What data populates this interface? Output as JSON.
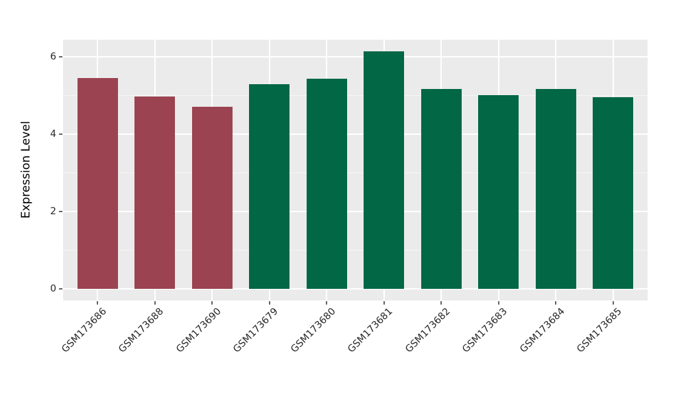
{
  "chart_data": {
    "type": "bar",
    "title": "",
    "xlabel": "",
    "ylabel": "Expression Level",
    "categories": [
      "GSM173686",
      "GSM173688",
      "GSM173690",
      "GSM173679",
      "GSM173680",
      "GSM173681",
      "GSM173682",
      "GSM173683",
      "GSM173684",
      "GSM173685"
    ],
    "values": [
      5.45,
      4.98,
      4.71,
      5.29,
      5.43,
      6.14,
      5.17,
      5.01,
      5.17,
      4.96
    ],
    "bar_colors": [
      "#9B4351",
      "#9B4351",
      "#9B4351",
      "#016745",
      "#016745",
      "#016745",
      "#016745",
      "#016745",
      "#016745",
      "#016745"
    ],
    "yticks": [
      0,
      2,
      4,
      6
    ],
    "ytick_labels": [
      "0",
      "2",
      "4",
      "6"
    ],
    "yticks_minor": [
      1,
      3,
      5
    ],
    "ylim": [
      -0.3,
      6.44
    ],
    "grid": "on",
    "legend_position": "none",
    "panel_background": "#EBEBEB",
    "gridline_color": "#ffffff",
    "tick_color": "#666666",
    "palette": {
      "group1_red": "#9B4351",
      "group2_green": "#016745"
    }
  }
}
